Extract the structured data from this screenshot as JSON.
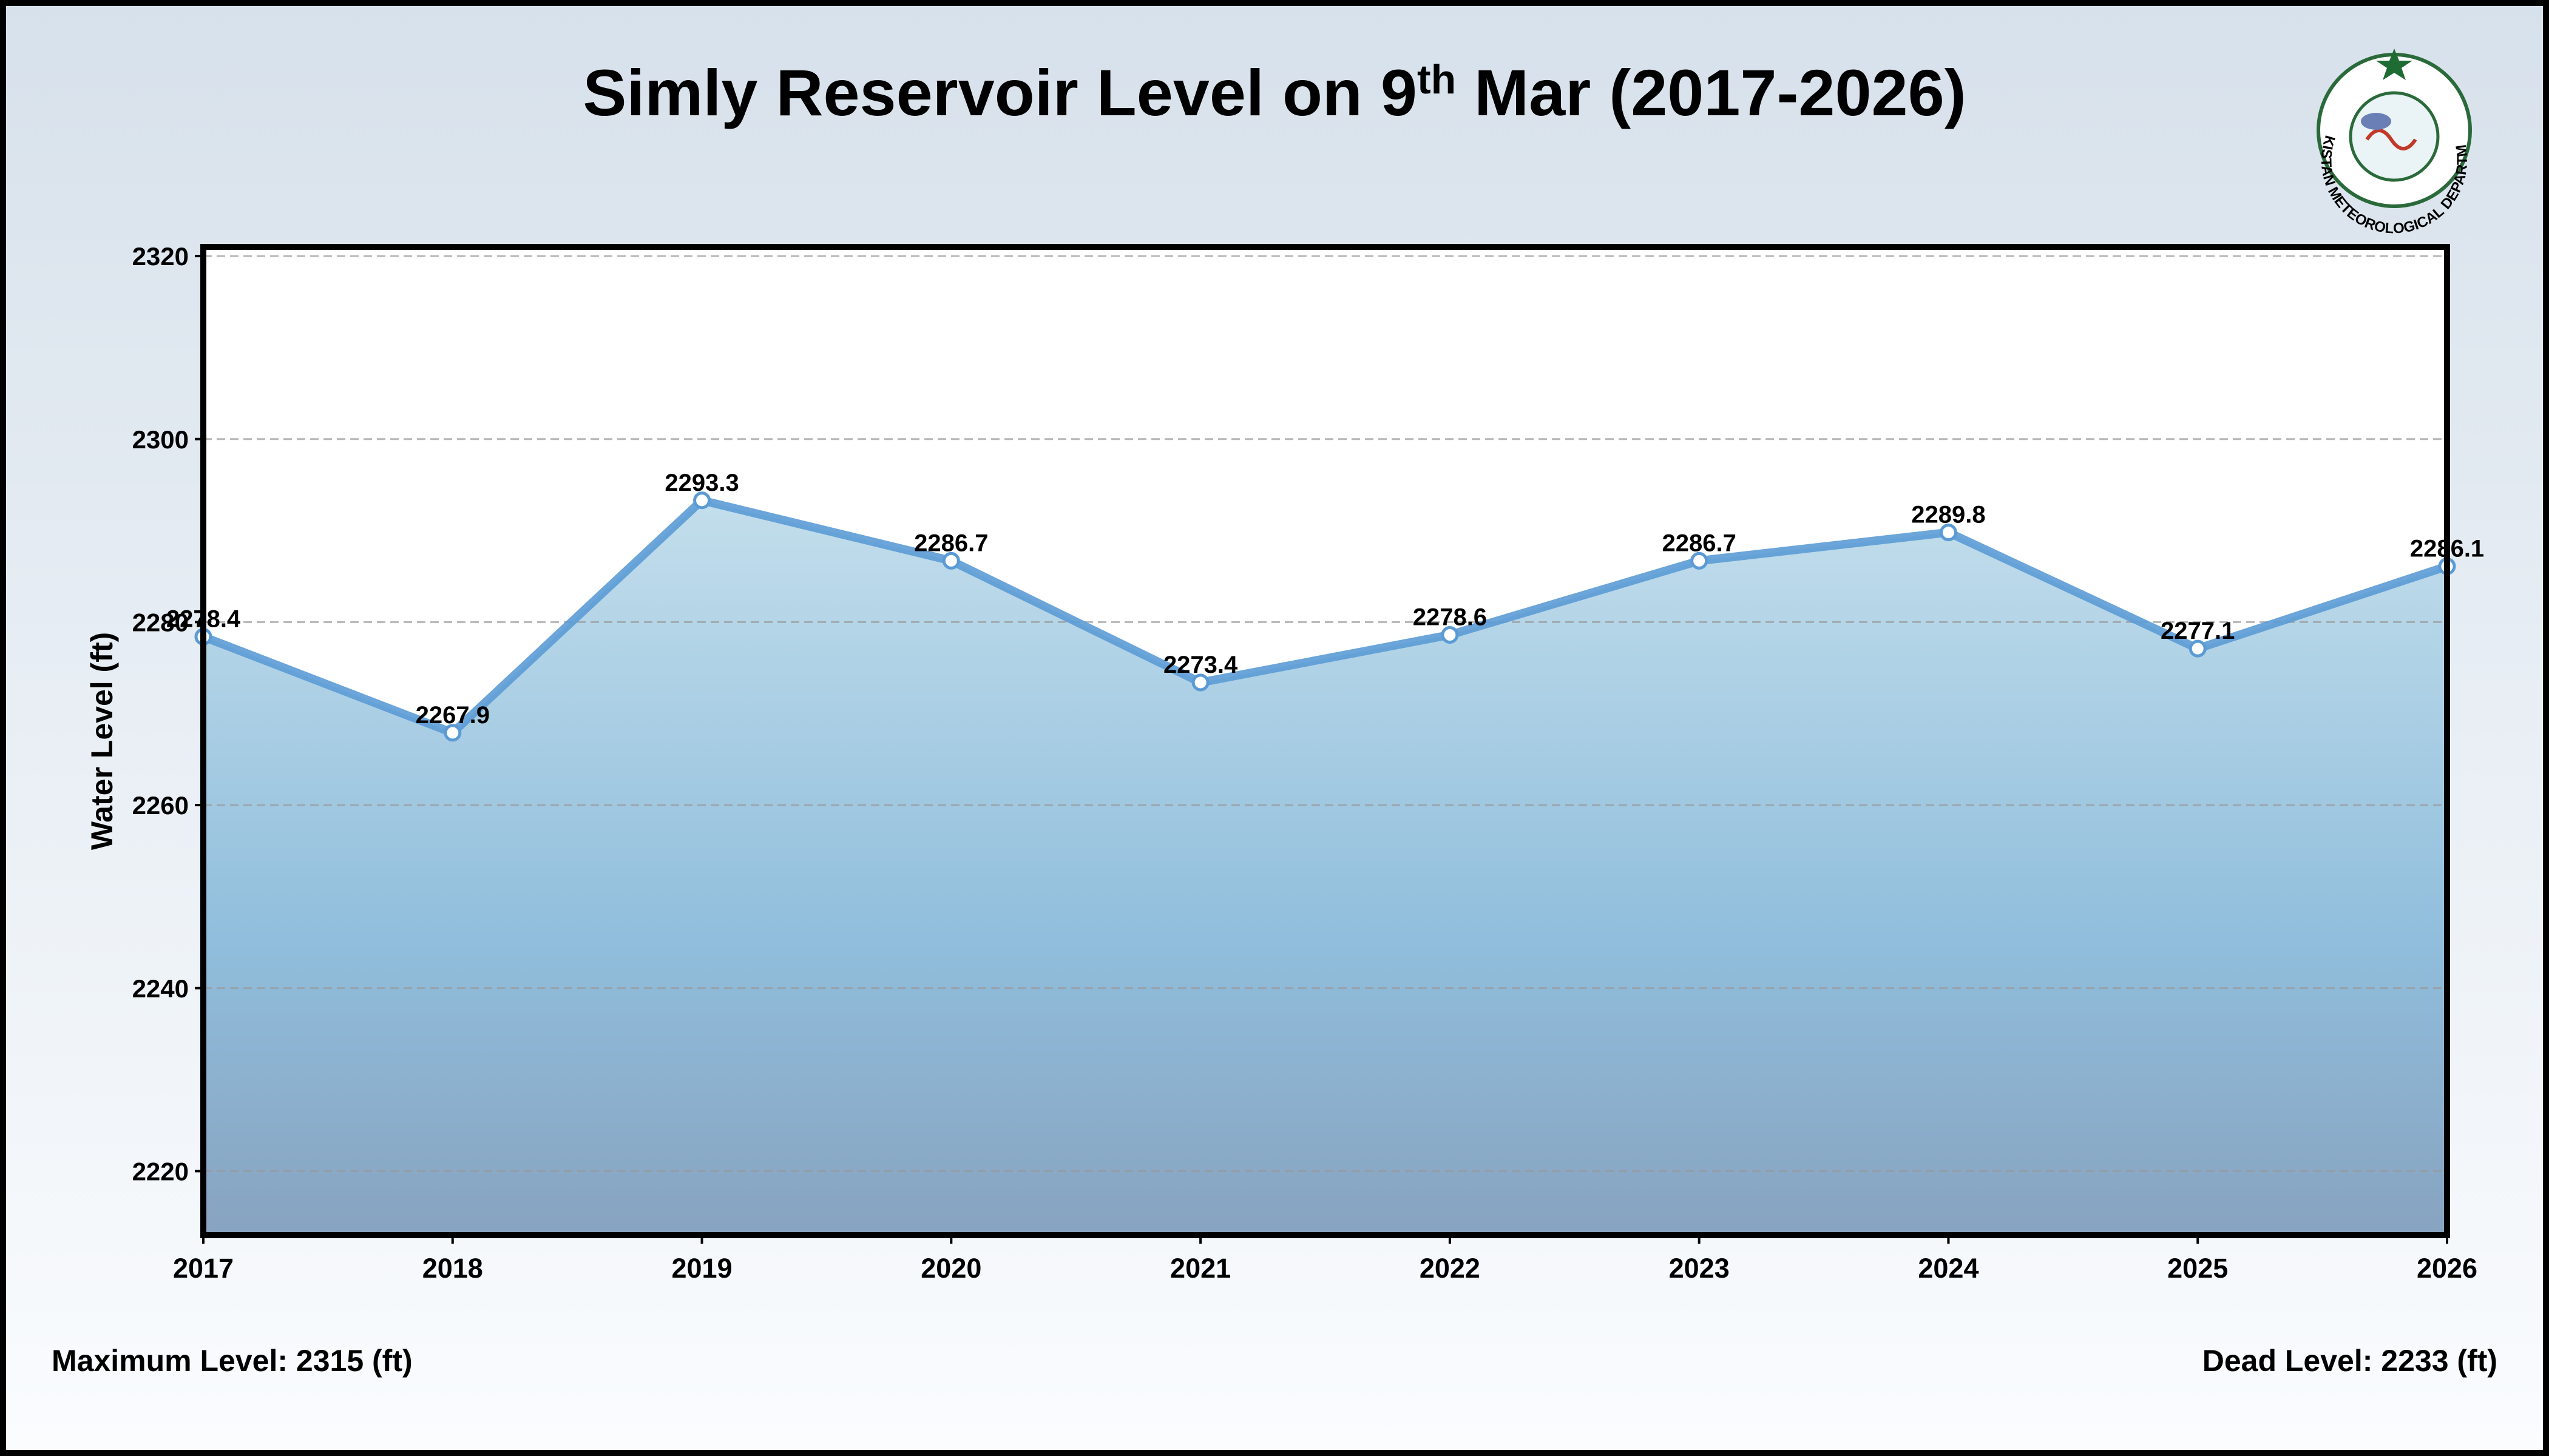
{
  "chart_data": {
    "type": "area",
    "title": "Simly Reservoir Level on 9th Mar (2017-2026)",
    "y_label": "Water Level (ft)",
    "x": [
      2017,
      2018,
      2019,
      2020,
      2021,
      2022,
      2023,
      2024,
      2025,
      2026
    ],
    "values": [
      2278.4,
      2267.9,
      2293.3,
      2286.7,
      2273.4,
      2278.6,
      2286.7,
      2289.8,
      2277.1,
      2286.1
    ],
    "color": "#5b9bd5",
    "xlim": [
      2017,
      2026
    ],
    "xticks": [
      2017,
      2018,
      2019,
      2020,
      2021,
      2022,
      2023,
      2024,
      2025,
      2026
    ],
    "ylim": [
      2213,
      2321
    ],
    "yticks": [
      2220,
      2240,
      2260,
      2280,
      2300,
      2320
    ],
    "grid": true,
    "footer_left": "Maximum Level: 2315 (ft)",
    "footer_right": "Dead Level: 2233 (ft)",
    "logo_text": "PAKISTAN METEOROLOGICAL DEPARTMENT"
  }
}
